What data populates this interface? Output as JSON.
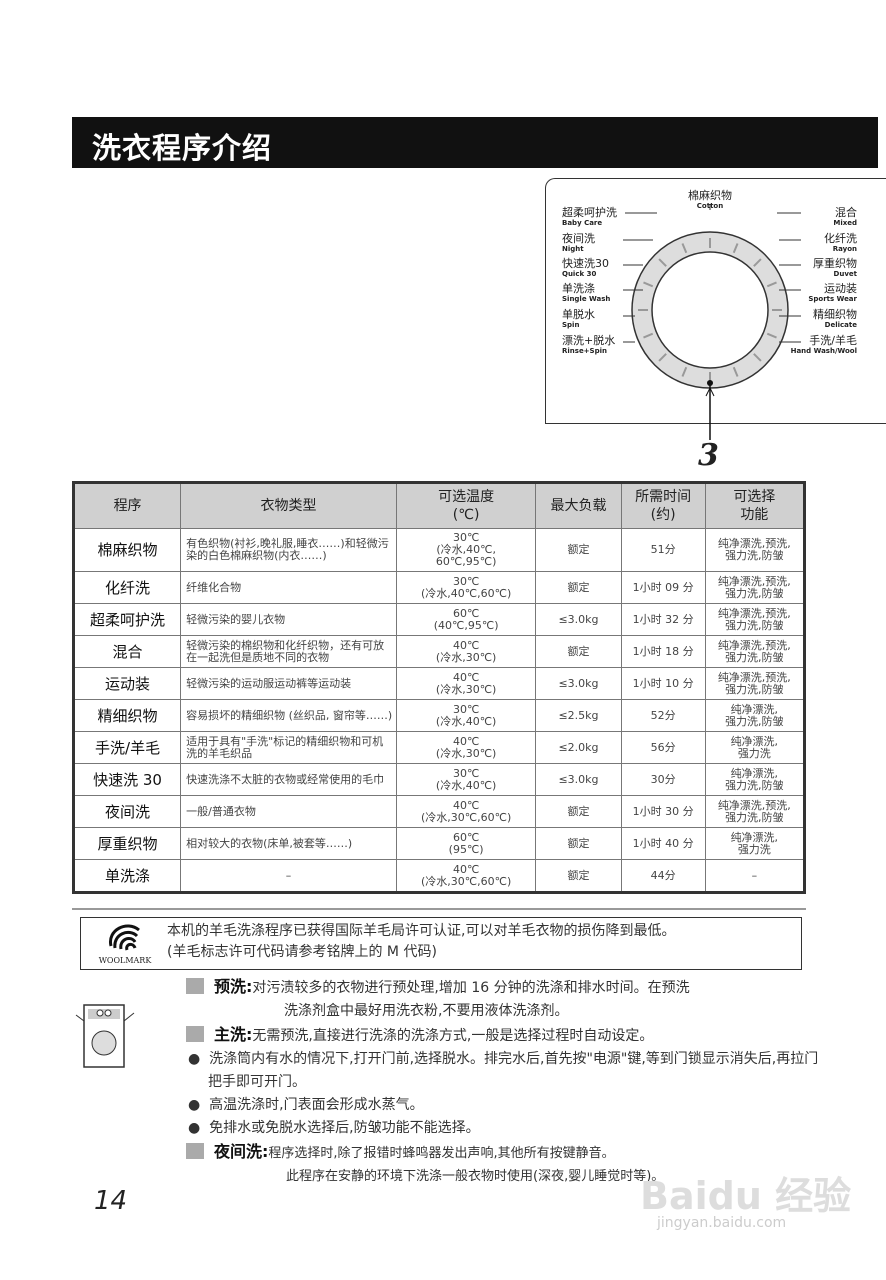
{
  "title": "洗衣程序介绍",
  "dial": {
    "top": {
      "cn": "棉麻织物",
      "en": "Cotton"
    },
    "left": [
      {
        "cn": "超柔呵护洗",
        "en": "Baby Care"
      },
      {
        "cn": "夜间洗",
        "en": "Night"
      },
      {
        "cn": "快速洗30",
        "en": "Quick 30"
      },
      {
        "cn": "单洗涤",
        "en": "Single Wash"
      },
      {
        "cn": "单脱水",
        "en": "Spin"
      },
      {
        "cn": "漂洗+脱水",
        "en": "Rinse+Spin"
      }
    ],
    "right": [
      {
        "cn": "混合",
        "en": "Mixed"
      },
      {
        "cn": "化纤洗",
        "en": "Rayon"
      },
      {
        "cn": "厚重织物",
        "en": "Duvet"
      },
      {
        "cn": "运动装",
        "en": "Sports Wear"
      },
      {
        "cn": "精细织物",
        "en": "Delicate"
      },
      {
        "cn": "手洗/羊毛",
        "en": "Hand Wash/Wool"
      }
    ],
    "callout": "3"
  },
  "table": {
    "headers": [
      "程序",
      "衣物类型",
      "可选温度\n(℃)",
      "最大负载",
      "所需时间\n(约)",
      "可选择\n功能"
    ],
    "rows": [
      [
        "棉麻织物",
        "有色织物(衬衫,晚礼服,睡衣……)和轻微污染的白色棉麻织物(内衣……)",
        "30℃\n(冷水,40℃,\n60℃,95℃)",
        "额定",
        "51分",
        "纯净漂洗,预洗,\n强力洗,防皱"
      ],
      [
        "化纤洗",
        "纤维化合物",
        "30℃\n(冷水,40℃,60℃)",
        "额定",
        "1小时 09 分",
        "纯净漂洗,预洗,\n强力洗,防皱"
      ],
      [
        "超柔呵护洗",
        "轻微污染的婴儿衣物",
        "60℃\n(40℃,95℃)",
        "≤3.0kg",
        "1小时 32 分",
        "纯净漂洗,预洗,\n强力洗,防皱"
      ],
      [
        "混合",
        "轻微污染的棉织物和化纤织物，还有可放在一起洗但是质地不同的衣物",
        "40℃\n(冷水,30℃)",
        "额定",
        "1小时 18 分",
        "纯净漂洗,预洗,\n强力洗,防皱"
      ],
      [
        "运动装",
        "轻微污染的运动服运动裤等运动装",
        "40℃\n(冷水,30℃)",
        "≤3.0kg",
        "1小时 10 分",
        "纯净漂洗,预洗,\n强力洗,防皱"
      ],
      [
        "精细织物",
        "容易损坏的精细织物 (丝织品, 窗帘等……)",
        "30℃\n(冷水,40℃)",
        "≤2.5kg",
        "52分",
        "纯净漂洗,\n强力洗,防皱"
      ],
      [
        "手洗/羊毛",
        "适用于具有\"手洗\"标记的精细织物和可机洗的羊毛织品",
        "40℃\n(冷水,30℃)",
        "≤2.0kg",
        "56分",
        "纯净漂洗,\n强力洗"
      ],
      [
        "快速洗 30",
        "快速洗涤不太脏的衣物或经常使用的毛巾",
        "30℃\n(冷水,40℃)",
        "≤3.0kg",
        "30分",
        "纯净漂洗,\n强力洗,防皱"
      ],
      [
        "夜间洗",
        "一般/普通衣物",
        "40℃\n(冷水,30℃,60℃)",
        "额定",
        "1小时 30 分",
        "纯净漂洗,预洗,\n强力洗,防皱"
      ],
      [
        "厚重织物",
        "相对较大的衣物(床单,被套等……)",
        "60℃\n(95℃)",
        "额定",
        "1小时 40 分",
        "纯净漂洗,\n强力洗"
      ],
      [
        "单洗涤",
        "–",
        "40℃\n(冷水,30℃,60℃)",
        "额定",
        "44分",
        "–"
      ]
    ]
  },
  "woolmark": {
    "logo_text": "WOOLMARK",
    "line1": "本机的羊毛洗涤程序已获得国际羊毛局许可认证,可以对羊毛衣物的损伤降到最低。",
    "line2": "(羊毛标志许可代码请参考铭牌上的 M 代码)"
  },
  "notes": {
    "prewash": {
      "head": "预洗",
      "sep": ":",
      "l1": "对污渍较多的衣物进行预处理,增加 16 分钟的洗涤和排水时间。在预洗",
      "l2": "洗涤剂盒中最好用洗衣粉,不要用液体洗涤剂。"
    },
    "mainwash": {
      "head": "主洗",
      "sep": ":",
      "l1": "无需预洗,直接进行洗涤的洗涤方式,一般是选择过程时自动设定。"
    },
    "bullets": [
      "洗涤筒内有水的情况下,打开门前,选择脱水。排完水后,首先按\"电源\"键,等到门锁显示消失后,再拉门把手即可开门。",
      "高温洗涤时,门表面会形成水蒸气。",
      "免排水或免脱水选择后,防皱功能不能选择。"
    ],
    "night": {
      "head": "夜间洗",
      "sep": ":",
      "l1": "程序选择时,除了报错时蜂鸣器发出声响,其他所有按键静音。",
      "l2": "此程序在安静的环境下洗涤一般衣物时使用(深夜,婴儿睡觉时等)。"
    }
  },
  "page_number": "14",
  "watermark": {
    "brand": "Baidu 经验",
    "url": "jingyan.baidu.com"
  }
}
